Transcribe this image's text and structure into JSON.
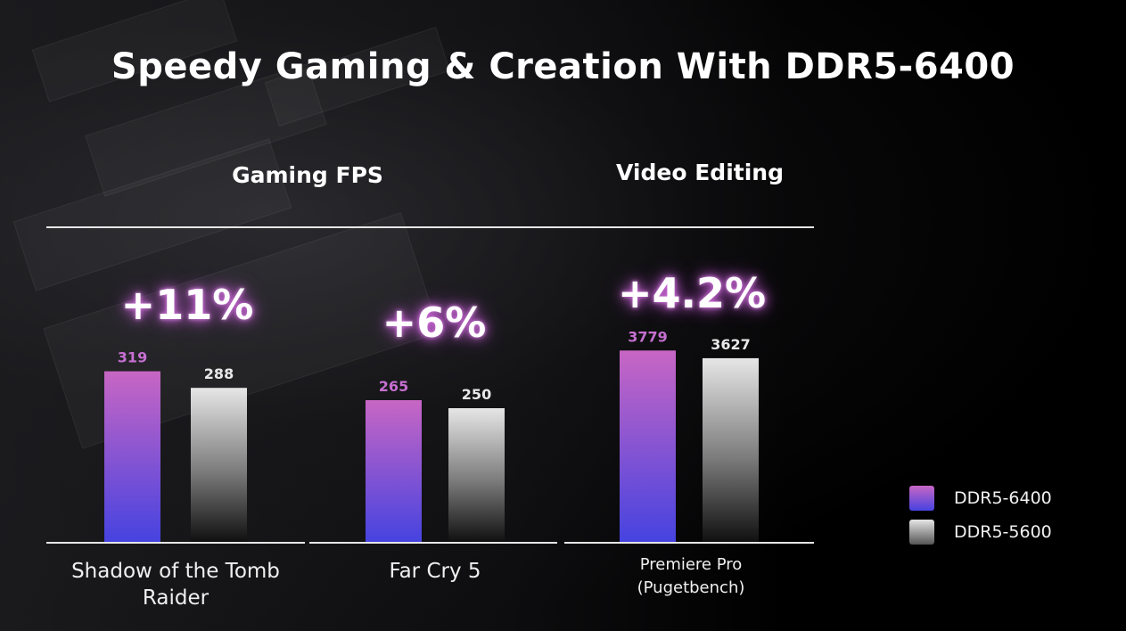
{
  "title": "Speedy Gaming & Creation With DDR5-6400",
  "sections": {
    "gaming": "Gaming FPS",
    "video": "Video Editing"
  },
  "colors": {
    "ddr5_6400_top": "#c866c4",
    "ddr5_6400_bottom": "#4643e0",
    "ddr5_5600_top": "#e6e6e6",
    "ddr5_5600_bottom": "#101010",
    "line": "#e6e6e6",
    "value_6400": "#c56fd0",
    "value_5600": "#e8e8e8"
  },
  "chart_data": {
    "type": "bar",
    "title": "Speedy Gaming & Creation With DDR5-6400",
    "categories": [
      "Shadow of the Tomb Raider",
      "Far Cry 5",
      "Premiere Pro (Pugetbench)"
    ],
    "category_labels": [
      [
        "Shadow of the Tomb",
        "Raider"
      ],
      [
        "Far Cry 5"
      ],
      [
        "Premiere Pro",
        "(Pugetbench)"
      ]
    ],
    "series": [
      {
        "name": "DDR5-6400",
        "values": [
          319,
          265,
          3779
        ]
      },
      {
        "name": "DDR5-5600",
        "values": [
          288,
          250,
          3627
        ]
      }
    ],
    "improvements": [
      "+11%",
      "+6%",
      "+4.2%"
    ],
    "groups": [
      {
        "label": "Gaming FPS",
        "categories": [
          "Shadow of the Tomb Raider",
          "Far Cry 5"
        ]
      },
      {
        "label": "Video Editing",
        "categories": [
          "Premiere Pro (Pugetbench)"
        ]
      }
    ],
    "legend": [
      "DDR5-6400",
      "DDR5-5600"
    ],
    "legend_position": "right"
  }
}
